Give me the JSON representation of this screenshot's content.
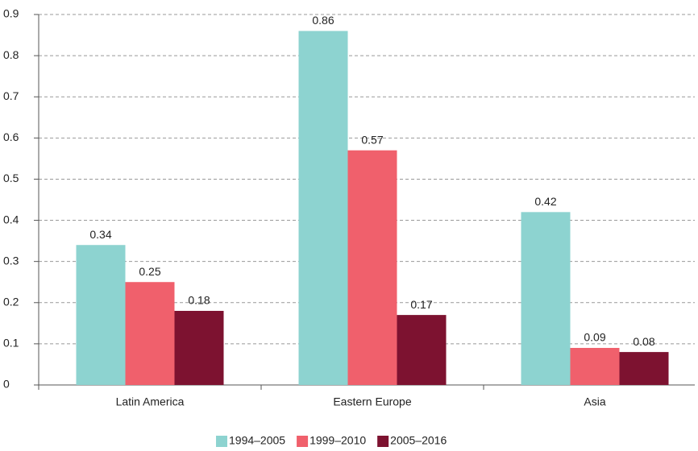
{
  "chart_data": {
    "type": "bar",
    "categories": [
      "Latin America",
      "Eastern Europe",
      "Asia"
    ],
    "series": [
      {
        "name": "1994–2005",
        "color": "#8dd3d0",
        "values": [
          0.34,
          0.86,
          0.42
        ]
      },
      {
        "name": "1999–2010",
        "color": "#f0606c",
        "values": [
          0.25,
          0.57,
          0.09
        ]
      },
      {
        "name": "2005–2016",
        "color": "#7d1230",
        "values": [
          0.18,
          0.17,
          0.08
        ]
      }
    ],
    "ylim": [
      0,
      0.9
    ],
    "yticks": [
      0,
      0.1,
      0.2,
      0.3,
      0.4,
      0.5,
      0.6,
      0.7,
      0.8,
      0.9
    ],
    "grid": true,
    "legend": "bottom"
  }
}
